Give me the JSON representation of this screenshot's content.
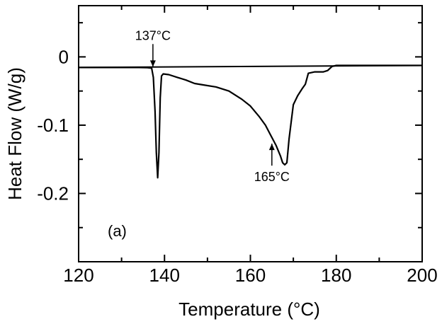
{
  "chart_data": {
    "type": "line",
    "xlabel": "Temperature (°C)",
    "ylabel": "Heat Flow (W/g)",
    "panel_label": "(a)",
    "xlim": [
      120,
      200
    ],
    "ylim": [
      -0.3,
      0.075
    ],
    "x_ticks": [
      120,
      140,
      160,
      180,
      200
    ],
    "x_tick_labels": [
      "120",
      "140",
      "160",
      "180",
      "200"
    ],
    "x_minor_ticks": [
      130,
      150,
      170,
      190
    ],
    "y_ticks": [
      0,
      -0.1,
      -0.2
    ],
    "y_tick_labels": [
      "0",
      "-0.1",
      "-0.2"
    ],
    "y_minor_ticks": [
      0.05,
      -0.05,
      -0.15,
      -0.25
    ],
    "grid": false,
    "legend": "none",
    "series": [
      {
        "x": [
          120,
          134,
          136,
          137,
          137.4,
          137.8,
          138.1,
          138.4,
          138.7,
          139,
          139.3,
          139.7,
          141,
          143,
          145,
          147,
          149,
          152,
          155,
          158,
          160,
          162,
          163.5,
          165,
          166,
          167,
          167.5,
          168,
          168.5,
          169,
          170,
          171,
          172,
          172.8,
          173.5,
          175,
          177,
          178,
          179,
          180,
          185,
          190,
          200
        ],
        "y": [
          -0.0155,
          -0.0155,
          -0.0158,
          -0.0165,
          -0.03,
          -0.08,
          -0.14,
          -0.177,
          -0.14,
          -0.06,
          -0.028,
          -0.025,
          -0.026,
          -0.03,
          -0.034,
          -0.039,
          -0.041,
          -0.044,
          -0.05,
          -0.062,
          -0.072,
          -0.087,
          -0.1,
          -0.118,
          -0.13,
          -0.145,
          -0.155,
          -0.158,
          -0.155,
          -0.12,
          -0.07,
          -0.057,
          -0.047,
          -0.04,
          -0.024,
          -0.022,
          -0.022,
          -0.02,
          -0.014,
          -0.0125,
          -0.0125,
          -0.0125,
          -0.0125
        ]
      }
    ],
    "baseline": {
      "x": [
        120,
        200
      ],
      "y": [
        -0.0155,
        -0.0125
      ]
    },
    "annotations": [
      {
        "text": "137°C",
        "x": 137.3,
        "y": -0.0165,
        "text_y": 0.025
      },
      {
        "text": "165°C",
        "x": 165,
        "y": -0.125,
        "text_y": -0.18
      }
    ]
  }
}
